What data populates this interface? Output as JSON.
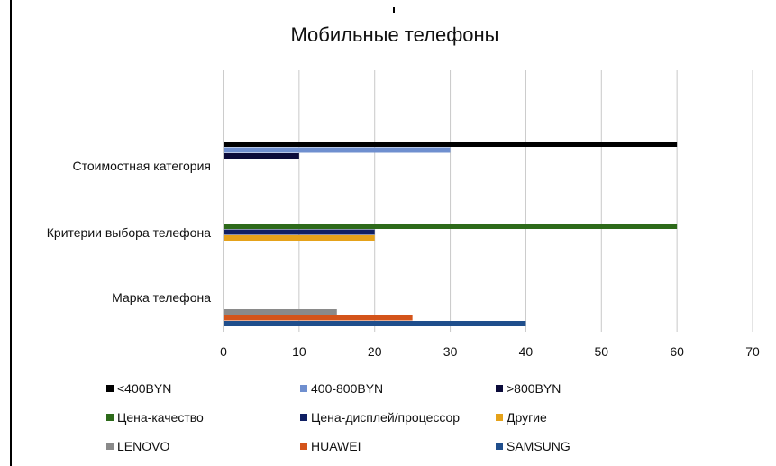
{
  "chart_data": {
    "type": "bar",
    "orientation": "horizontal",
    "title": "Мобильные телефоны",
    "xlabel": "",
    "ylabel": "",
    "xlim": [
      0,
      70
    ],
    "xticks": [
      0,
      10,
      20,
      30,
      40,
      50,
      60,
      70
    ],
    "grid": true,
    "legend_position": "bottom",
    "categories": [
      "Стоимостная категория",
      "Критерии выбора телефона",
      "Марка телефона"
    ],
    "series": [
      {
        "name": "<400BYN",
        "color": "#000000",
        "values": [
          60,
          null,
          null
        ]
      },
      {
        "name": "400-800BYN",
        "color": "#6f8fcf",
        "values": [
          30,
          null,
          null
        ]
      },
      {
        "name": ">800BYN",
        "color": "#0b0b3a",
        "values": [
          10,
          null,
          null
        ]
      },
      {
        "name": "Цена-качество",
        "color": "#2d6a1a",
        "values": [
          null,
          60,
          null
        ]
      },
      {
        "name": "Цена-дисплей/процессор",
        "color": "#0f1f63",
        "values": [
          null,
          20,
          null
        ]
      },
      {
        "name": "Другие",
        "color": "#e5a21a",
        "values": [
          null,
          20,
          null
        ]
      },
      {
        "name": "LENOVO",
        "color": "#8a8a8a",
        "values": [
          null,
          null,
          15
        ]
      },
      {
        "name": "HUAWEI",
        "color": "#d4541a",
        "values": [
          null,
          null,
          25
        ]
      },
      {
        "name": "SAMSUNG",
        "color": "#1f4e8c",
        "values": [
          null,
          null,
          40
        ]
      }
    ]
  }
}
